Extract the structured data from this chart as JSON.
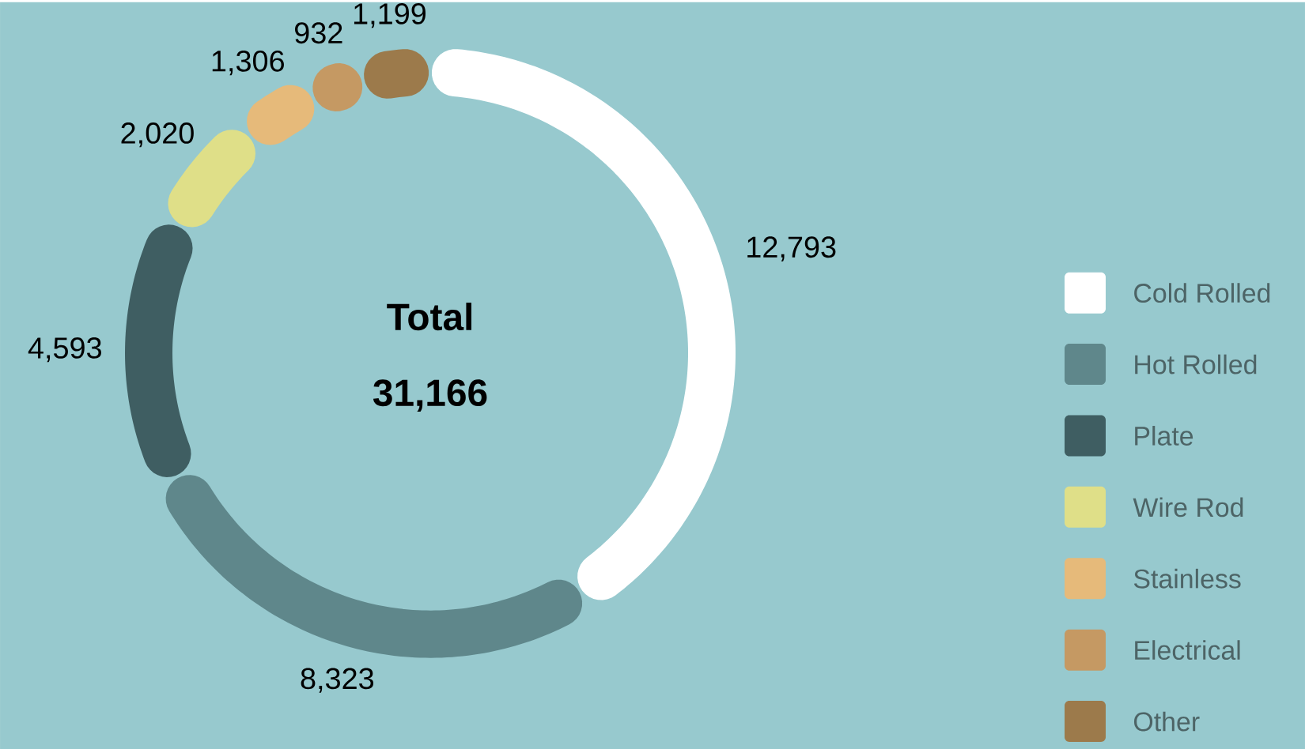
{
  "chart_data": {
    "type": "donut",
    "categories": [
      "Cold Rolled",
      "Hot Rolled",
      "Plate",
      "Wire Rod",
      "Stainless",
      "Electrical",
      "Other"
    ],
    "values": [
      12793,
      8323,
      4593,
      2020,
      1306,
      932,
      1199
    ],
    "value_labels": [
      "12,793",
      "8,323",
      "4,593",
      "2,020",
      "1,306",
      "932",
      "1,199"
    ],
    "colors": [
      "#ffffff",
      "#5f878b",
      "#3f5e62",
      "#dfdf88",
      "#e6ba7a",
      "#c59963",
      "#9c7a4b"
    ],
    "annotations": [
      "Total",
      "31,166"
    ],
    "legend": "right"
  }
}
